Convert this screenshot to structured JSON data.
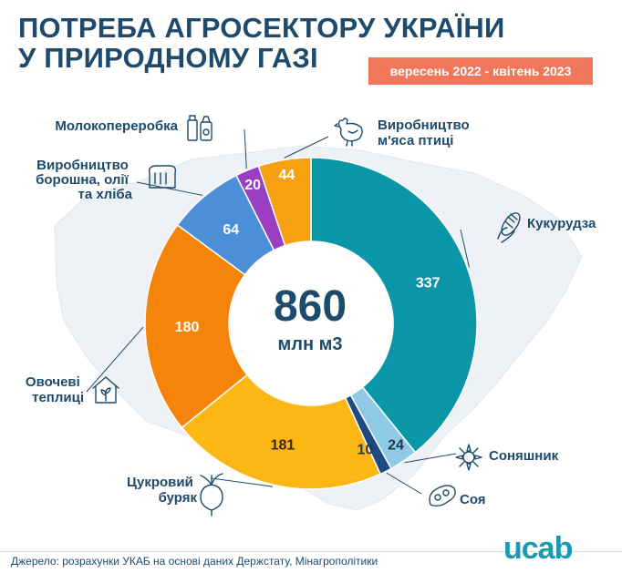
{
  "title_line1": "ПОТРЕБА АГРОСЕКТОРУ УКРАЇНИ",
  "title_line2": "У ПРИРОДНОМУ ГАЗІ",
  "period": "вересень 2022 - квітень 2023",
  "footer": "Джерело: розрахунки УКАБ на основі даних Держстату, Мінагрополітики",
  "logo": "ucab",
  "chart_data": {
    "type": "pie",
    "style": "donut",
    "center_value": "860",
    "center_unit": "млн м3",
    "total": 860,
    "slices": [
      {
        "name": "Кукурудза",
        "value": 337,
        "label": "337",
        "color": "#0a96a6",
        "label_color": "#ffffff",
        "icon": "corn-icon"
      },
      {
        "name": "Соняшник",
        "value": 24,
        "label": "24",
        "color": "#8ec9e6",
        "label_color": "#1e3a52",
        "icon": "sunflower-icon"
      },
      {
        "name": "Соя",
        "value": 10,
        "label": "10",
        "color": "#1e4a84",
        "label_color": "#1e3a52",
        "icon": "soy-icon"
      },
      {
        "name": "Цукровий буряк",
        "value": 181,
        "label": "181",
        "color": "#fdb714",
        "label_color": "#3a2a00",
        "icon": "beet-icon"
      },
      {
        "name": "Овочеві теплиці",
        "value": 180,
        "label": "180",
        "color": "#f5840a",
        "label_color": "#ffffff",
        "icon": "greenhouse-icon"
      },
      {
        "name": "Виробництво борошна, олії та хліба",
        "value": 64,
        "label": "64",
        "color": "#4b8fd8",
        "label_color": "#ffffff",
        "icon": "bread-icon"
      },
      {
        "name": "Молокопереробка",
        "value": 20,
        "label": "20",
        "color": "#9b3fc2",
        "label_color": "#ffffff",
        "icon": "milk-icon"
      },
      {
        "name": "Виробництво м'яса птиці",
        "value": 44,
        "label": "44",
        "color": "#f7a012",
        "label_color": "#ffffff",
        "icon": "chicken-icon"
      }
    ]
  }
}
